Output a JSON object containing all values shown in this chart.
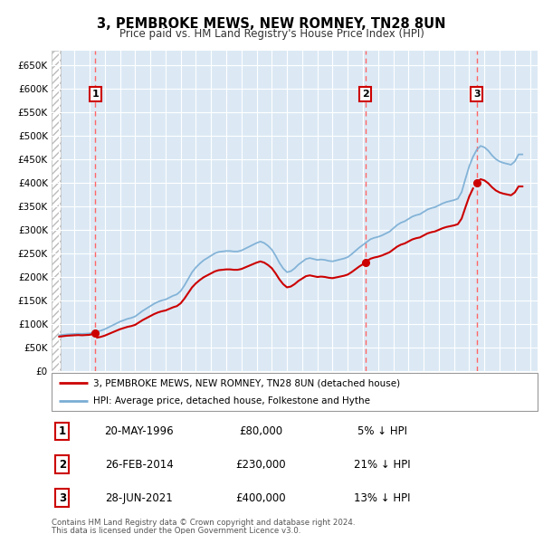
{
  "title": "3, PEMBROKE MEWS, NEW ROMNEY, TN28 8UN",
  "subtitle": "Price paid vs. HM Land Registry's House Price Index (HPI)",
  "legend_label_red": "3, PEMBROKE MEWS, NEW ROMNEY, TN28 8UN (detached house)",
  "legend_label_blue": "HPI: Average price, detached house, Folkestone and Hythe",
  "footer1": "Contains HM Land Registry data © Crown copyright and database right 2024.",
  "footer2": "This data is licensed under the Open Government Licence v3.0.",
  "transactions": [
    {
      "num": 1,
      "date": "20-MAY-1996",
      "price": 80000,
      "pct": "5%",
      "dir": "↓",
      "x": 1996.38
    },
    {
      "num": 2,
      "date": "26-FEB-2014",
      "price": 230000,
      "pct": "21%",
      "dir": "↓",
      "x": 2014.15
    },
    {
      "num": 3,
      "date": "28-JUN-2021",
      "price": 400000,
      "pct": "13%",
      "dir": "↓",
      "x": 2021.49
    }
  ],
  "ylim": [
    0,
    680000
  ],
  "xlim": [
    1993.5,
    2025.5
  ],
  "yticks": [
    0,
    50000,
    100000,
    150000,
    200000,
    250000,
    300000,
    350000,
    400000,
    450000,
    500000,
    550000,
    600000,
    650000
  ],
  "xticks": [
    1994,
    1995,
    1996,
    1997,
    1998,
    1999,
    2000,
    2001,
    2002,
    2003,
    2004,
    2005,
    2006,
    2007,
    2008,
    2009,
    2010,
    2011,
    2012,
    2013,
    2014,
    2015,
    2016,
    2017,
    2018,
    2019,
    2020,
    2021,
    2022,
    2023,
    2024,
    2025
  ],
  "bg_color": "#dce9f5",
  "grid_color": "#ffffff",
  "red_line_color": "#cc0000",
  "blue_line_color": "#7aadd4",
  "vline_color": "#ff6666",
  "box_edge_color": "#cc0000",
  "hpi_data": {
    "years": [
      1994.0,
      1994.25,
      1994.5,
      1994.75,
      1995.0,
      1995.25,
      1995.5,
      1995.75,
      1996.0,
      1996.25,
      1996.5,
      1996.75,
      1997.0,
      1997.25,
      1997.5,
      1997.75,
      1998.0,
      1998.25,
      1998.5,
      1998.75,
      1999.0,
      1999.25,
      1999.5,
      1999.75,
      2000.0,
      2000.25,
      2000.5,
      2000.75,
      2001.0,
      2001.25,
      2001.5,
      2001.75,
      2002.0,
      2002.25,
      2002.5,
      2002.75,
      2003.0,
      2003.25,
      2003.5,
      2003.75,
      2004.0,
      2004.25,
      2004.5,
      2004.75,
      2005.0,
      2005.25,
      2005.5,
      2005.75,
      2006.0,
      2006.25,
      2006.5,
      2006.75,
      2007.0,
      2007.25,
      2007.5,
      2007.75,
      2008.0,
      2008.25,
      2008.5,
      2008.75,
      2009.0,
      2009.25,
      2009.5,
      2009.75,
      2010.0,
      2010.25,
      2010.5,
      2010.75,
      2011.0,
      2011.25,
      2011.5,
      2011.75,
      2012.0,
      2012.25,
      2012.5,
      2012.75,
      2013.0,
      2013.25,
      2013.5,
      2013.75,
      2014.0,
      2014.25,
      2014.5,
      2014.75,
      2015.0,
      2015.25,
      2015.5,
      2015.75,
      2016.0,
      2016.25,
      2016.5,
      2016.75,
      2017.0,
      2017.25,
      2017.5,
      2017.75,
      2018.0,
      2018.25,
      2018.5,
      2018.75,
      2019.0,
      2019.25,
      2019.5,
      2019.75,
      2020.0,
      2020.25,
      2020.5,
      2020.75,
      2021.0,
      2021.25,
      2021.5,
      2021.75,
      2022.0,
      2022.25,
      2022.5,
      2022.75,
      2023.0,
      2023.25,
      2023.5,
      2023.75,
      2024.0,
      2024.25,
      2024.5
    ],
    "values": [
      76000,
      77000,
      78000,
      78500,
      79000,
      79500,
      79000,
      79500,
      80000,
      82000,
      84000,
      86000,
      89000,
      93000,
      97000,
      101000,
      105000,
      108000,
      111000,
      113000,
      116000,
      122000,
      128000,
      133000,
      138000,
      143000,
      147000,
      150000,
      152000,
      156000,
      160000,
      163000,
      170000,
      182000,
      196000,
      210000,
      220000,
      228000,
      235000,
      240000,
      245000,
      250000,
      253000,
      254000,
      255000,
      255000,
      254000,
      254000,
      256000,
      260000,
      264000,
      268000,
      272000,
      275000,
      272000,
      266000,
      258000,
      245000,
      230000,
      218000,
      210000,
      212000,
      218000,
      226000,
      232000,
      238000,
      240000,
      238000,
      236000,
      237000,
      236000,
      234000,
      233000,
      235000,
      237000,
      239000,
      242000,
      248000,
      255000,
      262000,
      268000,
      274000,
      280000,
      283000,
      285000,
      288000,
      292000,
      296000,
      303000,
      310000,
      315000,
      318000,
      323000,
      328000,
      331000,
      333000,
      338000,
      343000,
      346000,
      348000,
      352000,
      356000,
      359000,
      361000,
      363000,
      366000,
      380000,
      408000,
      435000,
      455000,
      470000,
      478000,
      475000,
      468000,
      458000,
      450000,
      445000,
      442000,
      440000,
      438000,
      445000,
      460000,
      460000
    ]
  }
}
